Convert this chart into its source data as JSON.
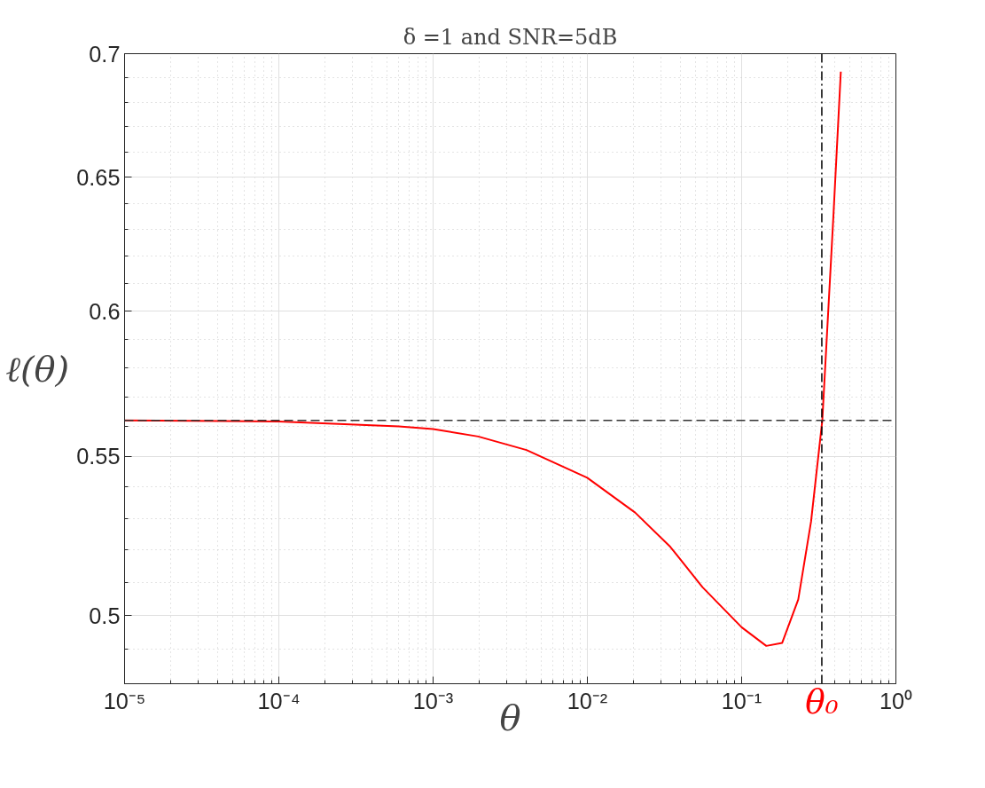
{
  "chart_data": {
    "type": "line",
    "title": "δ =1 and SNR=5dB",
    "xlabel": "θ",
    "ylabel": "ℓ(θ)",
    "log": "xy",
    "grid": true,
    "marker": "none",
    "line_style": "solid",
    "xlim": [
      1e-05,
      1
    ],
    "ylim": [
      0.48,
      0.7
    ],
    "xticks": [
      {
        "value": 1e-05,
        "label": "10⁻⁵"
      },
      {
        "value": 0.0001,
        "label": "10⁻⁴"
      },
      {
        "value": 0.001,
        "label": "10⁻³"
      },
      {
        "value": 0.01,
        "label": "10⁻²"
      },
      {
        "value": 0.1,
        "label": "10⁻¹"
      },
      {
        "value": 1,
        "label": "10⁰"
      }
    ],
    "yticks": [
      0.5,
      0.55,
      0.6,
      0.65,
      0.7
    ],
    "series": [
      {
        "color": "#ff0000",
        "x": [
          1e-05,
          0.0001,
          0.0006,
          0.001,
          0.00196,
          0.00403,
          0.00998,
          0.0204,
          0.0345,
          0.0557,
          0.1,
          0.1445,
          0.1832,
          0.2328,
          0.2818,
          0.3334,
          0.3936,
          0.4395
        ],
        "values": [
          0.562,
          0.5616,
          0.56,
          0.5591,
          0.5566,
          0.5521,
          0.543,
          0.5318,
          0.521,
          0.5086,
          0.4965,
          0.491,
          0.4919,
          0.5048,
          0.5289,
          0.562,
          0.6353,
          0.6925
        ]
      }
    ],
    "ref_lines": [
      {
        "axis": "y",
        "value": 0.562,
        "color": "#333333",
        "line_style": "dashed"
      },
      {
        "axis": "x",
        "value": 0.331,
        "label": "θ₀",
        "color": "#000000",
        "line_style": "dashdot"
      }
    ]
  }
}
